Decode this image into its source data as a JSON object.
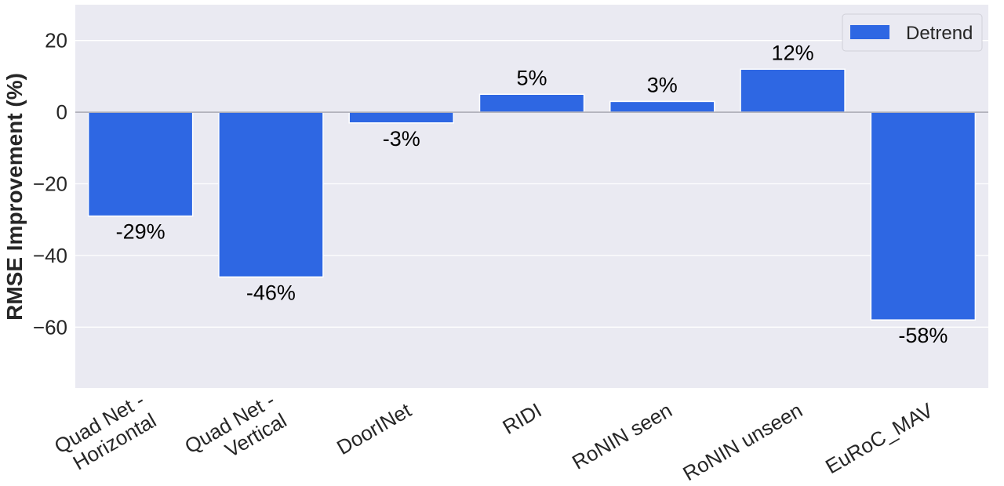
{
  "chart_data": {
    "type": "bar",
    "categories": [
      "Quad Net -\nHorizontal",
      "Quad Net -\nVertical",
      "DoorINet",
      "RIDI",
      "RoNIN seen",
      "RoNIN unseen",
      "EuRoC_MAV"
    ],
    "series": [
      {
        "name": "Detrend",
        "values": [
          -29,
          -46,
          -3,
          5,
          3,
          12,
          -58
        ],
        "labels": [
          "-29%",
          "-46%",
          "-3%",
          "5%",
          "3%",
          "12%",
          "-58%"
        ],
        "color": "#2e67e3"
      }
    ],
    "xlabel": "",
    "ylabel": "RMSE Improvement (%)",
    "ylim": [
      -77,
      30
    ],
    "yticks": [
      20,
      0,
      -20,
      -40,
      -60
    ],
    "ytick_labels": [
      "20",
      "0",
      "−20",
      "−40",
      "−60"
    ],
    "grid": true,
    "legend_position": "top-right",
    "background_color": "#eaeaf2",
    "zero_line_color": "#a9a9b3"
  }
}
